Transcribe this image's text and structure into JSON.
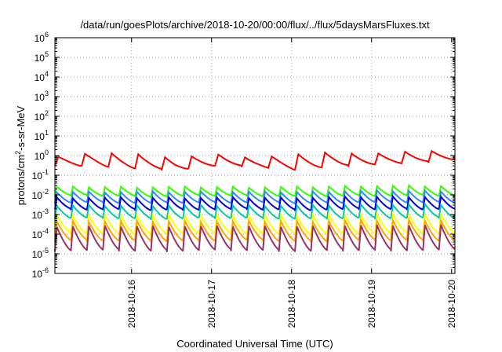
{
  "chart_data": {
    "type": "line",
    "title": "/data/run/goesPlots/archive/2018-10-20/00:00/flux/../flux/5daysMarsFluxes.txt",
    "xlabel": "Coordinated Universal Time (UTC)",
    "ylabel": {
      "base": "protons/cm",
      "sup": "2",
      "rest": "-s-sr-MeV"
    },
    "y_scale": "log",
    "ylim": [
      1e-06,
      1000000.0
    ],
    "xlim": [
      "2018-10-15 01:00",
      "2018-10-20 01:00"
    ],
    "y_ticks": [
      {
        "exp": -6,
        "label": "10",
        "sup": "-6"
      },
      {
        "exp": -5,
        "label": "10",
        "sup": "-5"
      },
      {
        "exp": -4,
        "label": "10",
        "sup": "-4"
      },
      {
        "exp": -3,
        "label": "10",
        "sup": "-3"
      },
      {
        "exp": -2,
        "label": "10",
        "sup": "-2"
      },
      {
        "exp": -1,
        "label": "10",
        "sup": "-1"
      },
      {
        "exp": 0,
        "label": "10",
        "sup": "0"
      },
      {
        "exp": 1,
        "label": "10",
        "sup": "1"
      },
      {
        "exp": 2,
        "label": "10",
        "sup": "2"
      },
      {
        "exp": 3,
        "label": "10",
        "sup": "3"
      },
      {
        "exp": 4,
        "label": "10",
        "sup": "4"
      },
      {
        "exp": 5,
        "label": "10",
        "sup": "5"
      },
      {
        "exp": 6,
        "label": "10",
        "sup": "6"
      }
    ],
    "x_ticks": [
      "2018-10-16",
      "2018-10-17",
      "2018-10-18",
      "2018-10-19",
      "2018-10-20"
    ],
    "grid": true,
    "legend": "none",
    "series": [
      {
        "color": "#ff0000",
        "cycles_per_day": 3,
        "min_log": [
          -0.5,
          -0.55,
          -0.7,
          -0.75,
          -0.55,
          -0.55,
          -0.75,
          -0.6,
          -0.45,
          -0.4,
          -0.2
        ],
        "max_log": [
          -0.05,
          0.15,
          0.05,
          -0.1,
          0.05,
          -0.1,
          0.05,
          0.15,
          0.1,
          0.2,
          0.35
        ]
      },
      {
        "color": "#33ff00",
        "cycles_per_day": 5,
        "min_log": [
          -2.05,
          -2.05,
          -2.1,
          -2.05,
          -2.05,
          -2.1,
          -2.05,
          -2.05,
          -2.05
        ],
        "max_log": [
          -1.6,
          -1.6,
          -1.6,
          -1.6,
          -1.6,
          -1.6,
          -1.55,
          -1.55,
          -1.55
        ]
      },
      {
        "color": "#3388ff",
        "cycles_per_day": 5,
        "min_log": [
          -2.4,
          -2.4,
          -2.45,
          -2.4,
          -2.4,
          -2.45,
          -2.4,
          -2.4,
          -2.4
        ],
        "max_log": [
          -1.85,
          -1.85,
          -1.85,
          -1.85,
          -1.85,
          -1.85,
          -1.8,
          -1.8,
          -1.8
        ]
      },
      {
        "color": "#0000dd",
        "cycles_per_day": 5,
        "min_log": [
          -2.75,
          -2.75,
          -2.8,
          -2.75,
          -2.75,
          -2.8,
          -2.75,
          -2.75,
          -2.75
        ],
        "max_log": [
          -2.15,
          -2.15,
          -2.15,
          -2.15,
          -2.15,
          -2.15,
          -2.1,
          -2.1,
          -2.1
        ]
      },
      {
        "color": "#00ccaa",
        "cycles_per_day": 5,
        "min_log": [
          -3.2,
          -3.2,
          -3.25,
          -3.2,
          -3.2,
          -3.25,
          -3.2,
          -3.2,
          -3.2
        ],
        "max_log": [
          -2.55,
          -2.55,
          -2.55,
          -2.55,
          -2.55,
          -2.55,
          -2.5,
          -2.5,
          -2.5
        ]
      },
      {
        "color": "#ffff00",
        "cycles_per_day": 5,
        "min_log": [
          -4.0,
          -4.0,
          -4.05,
          -4.0,
          -4.0,
          -4.05,
          -4.0,
          -4.0,
          -4.0
        ],
        "max_log": [
          -3.05,
          -3.05,
          -3.05,
          -3.05,
          -3.05,
          -3.05,
          -3.0,
          -3.0,
          -3.0
        ]
      },
      {
        "color": "#ffa500",
        "cycles_per_day": 5,
        "min_log": [
          -4.35,
          -4.35,
          -4.4,
          -4.35,
          -4.35,
          -4.4,
          -4.35,
          -4.35,
          -4.35
        ],
        "max_log": [
          -3.35,
          -3.35,
          -3.35,
          -3.35,
          -3.35,
          -3.35,
          -3.3,
          -3.3,
          -3.3
        ]
      },
      {
        "color": "#993366",
        "cycles_per_day": 5,
        "min_log": [
          -4.85,
          -4.85,
          -4.9,
          -4.85,
          -4.85,
          -4.9,
          -4.85,
          -4.85,
          -4.85
        ],
        "max_log": [
          -3.6,
          -3.6,
          -3.6,
          -3.6,
          -3.6,
          -3.6,
          -3.55,
          -3.55,
          -3.55
        ]
      }
    ]
  }
}
